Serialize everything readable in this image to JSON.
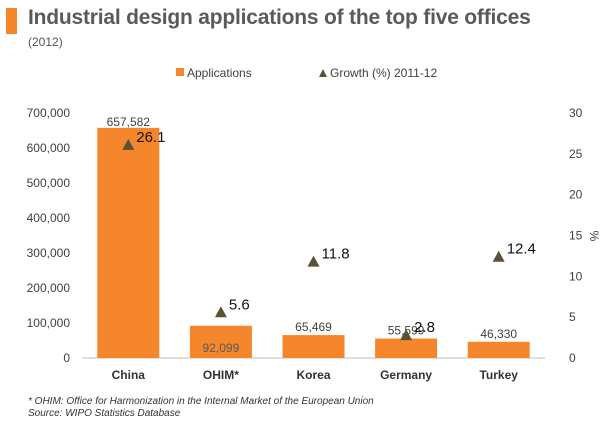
{
  "header": {
    "title": "Industrial design applications of the top five offices",
    "subtitle": "(2012)"
  },
  "footnotes": {
    "note": "* OHIM: Office for Harmonization in the Internal Market of the European Union",
    "source": "Source: WIPO Statistics Database"
  },
  "colors": {
    "accent": "#f5862b",
    "bar": "#f5862b",
    "marker": "#5a5236",
    "axis_text": "#404040"
  },
  "chart_data": {
    "type": "bar",
    "categories": [
      "China",
      "OHIM*",
      "Korea",
      "Germany",
      "Turkey"
    ],
    "series": [
      {
        "name": "Applications",
        "type": "bar",
        "axis": "left",
        "values": [
          657582,
          92099,
          65469,
          55599,
          46330
        ],
        "labels": [
          "657,582",
          "92,099",
          "65,469",
          "55,599",
          "46,330"
        ]
      },
      {
        "name": "Growth (%) 2011-12",
        "type": "marker",
        "axis": "right",
        "values": [
          26.1,
          5.6,
          11.8,
          2.8,
          12.4
        ],
        "labels": [
          "26.1",
          "5.6",
          "11.8",
          "2.8",
          "12.4"
        ]
      }
    ],
    "y_left": {
      "min": 0,
      "max": 700000,
      "ticks": [
        0,
        100000,
        200000,
        300000,
        400000,
        500000,
        600000,
        700000
      ],
      "tick_labels": [
        "0",
        "100,000",
        "200,000",
        "300,000",
        "400,000",
        "500,000",
        "600,000",
        "700,000"
      ]
    },
    "y_right": {
      "label": "%",
      "min": 0,
      "max": 30,
      "ticks": [
        0,
        5,
        10,
        15,
        20,
        25,
        30
      ],
      "tick_labels": [
        "0",
        "5",
        "10",
        "15",
        "20",
        "25",
        "30"
      ]
    },
    "legend_position": "top",
    "grid": false
  }
}
